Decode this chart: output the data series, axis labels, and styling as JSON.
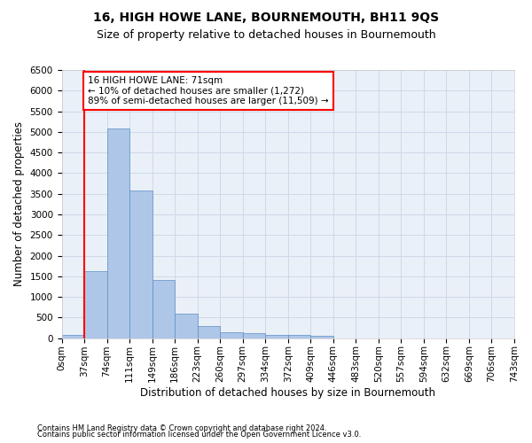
{
  "title": "16, HIGH HOWE LANE, BOURNEMOUTH, BH11 9QS",
  "subtitle": "Size of property relative to detached houses in Bournemouth",
  "xlabel": "Distribution of detached houses by size in Bournemouth",
  "ylabel": "Number of detached properties",
  "footer_line1": "Contains HM Land Registry data © Crown copyright and database right 2024.",
  "footer_line2": "Contains public sector information licensed under the Open Government Licence v3.0.",
  "annotation_line1": "16 HIGH HOWE LANE: 71sqm",
  "annotation_line2": "← 10% of detached houses are smaller (1,272)",
  "annotation_line3": "89% of semi-detached houses are larger (11,509) →",
  "bar_values": [
    75,
    1630,
    5080,
    3580,
    1410,
    590,
    285,
    145,
    115,
    85,
    70,
    55,
    0,
    0,
    0,
    0,
    0,
    0,
    0,
    0
  ],
  "bar_color": "#aec6e8",
  "bar_edge_color": "#5a8fc4",
  "categories": [
    "0sqm",
    "37sqm",
    "74sqm",
    "111sqm",
    "149sqm",
    "186sqm",
    "223sqm",
    "260sqm",
    "297sqm",
    "334sqm",
    "372sqm",
    "409sqm",
    "446sqm",
    "483sqm",
    "520sqm",
    "557sqm",
    "594sqm",
    "632sqm",
    "669sqm",
    "706sqm",
    "743sqm"
  ],
  "red_line_x": 1.0,
  "ylim": [
    0,
    6500
  ],
  "yticks": [
    0,
    500,
    1000,
    1500,
    2000,
    2500,
    3000,
    3500,
    4000,
    4500,
    5000,
    5500,
    6000,
    6500
  ],
  "grid_color": "#d0d8e8",
  "background_color": "#eaf0f8",
  "title_fontsize": 10,
  "subtitle_fontsize": 9,
  "axis_label_fontsize": 8.5,
  "tick_fontsize": 7.5,
  "annotation_fontsize": 7.5,
  "annotation_box_color": "white",
  "annotation_box_edge": "red",
  "footer_fontsize": 6
}
